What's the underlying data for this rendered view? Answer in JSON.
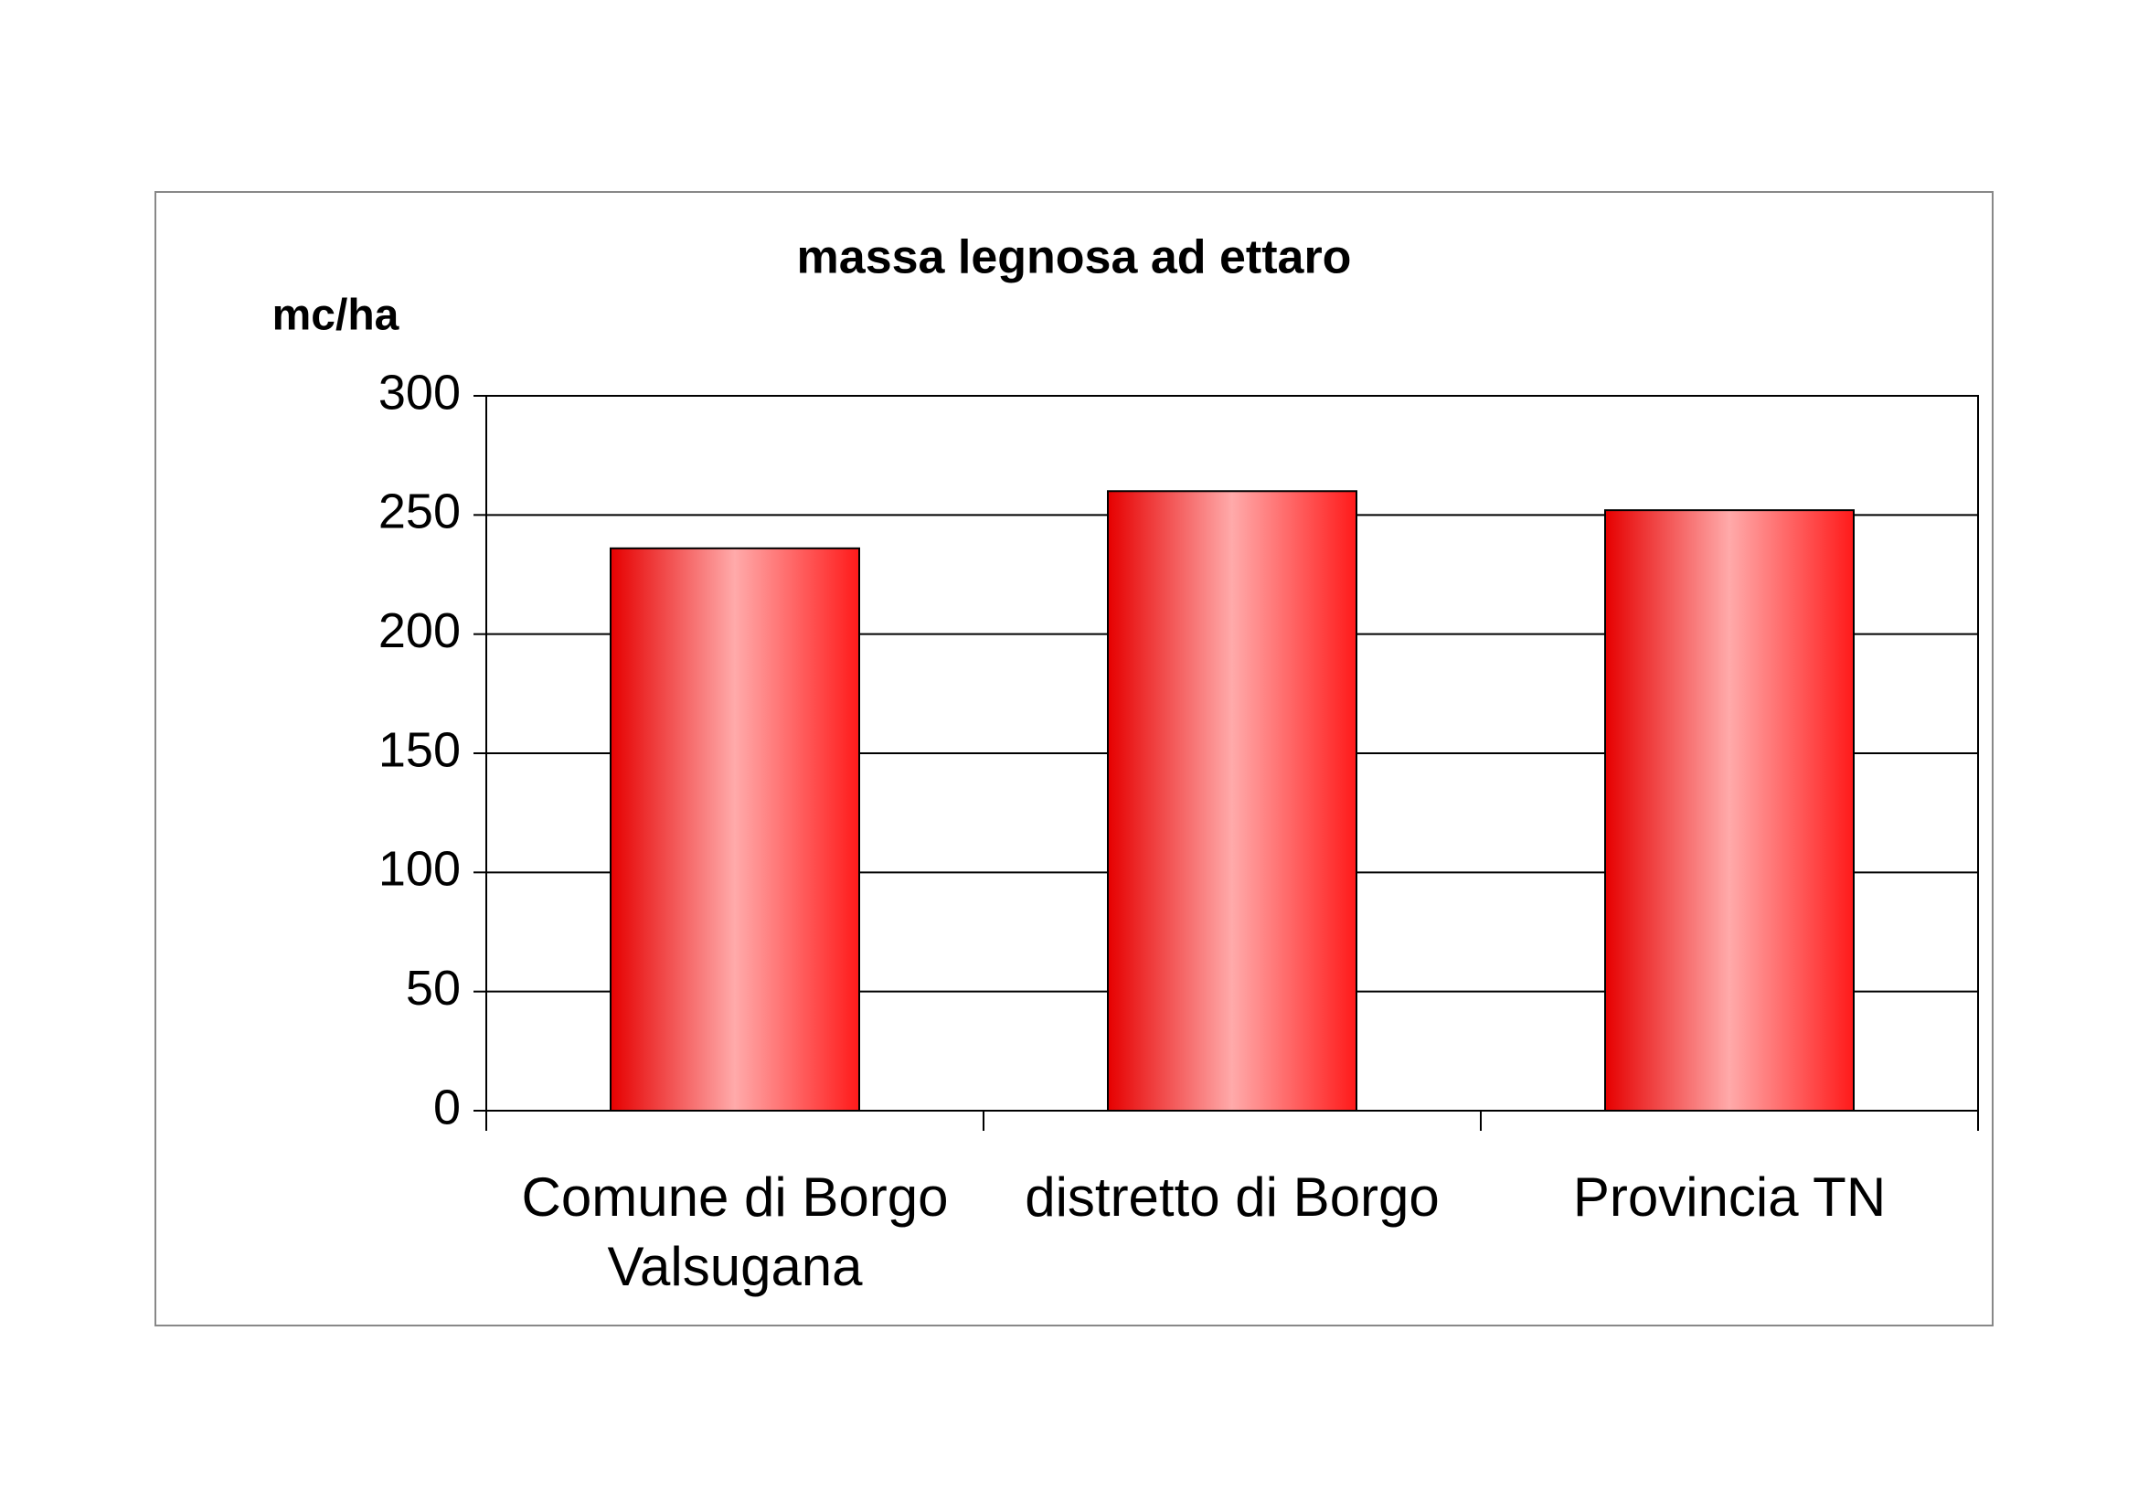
{
  "chart_data": {
    "type": "bar",
    "title": "massa legnosa ad ettaro",
    "y_label": "mc/ha",
    "categories": [
      "Comune di Borgo Valsugana",
      "distretto di Borgo",
      "Provincia TN"
    ],
    "values": [
      236,
      260,
      252
    ],
    "color": "#ff1a1a",
    "ylim": [
      0,
      300
    ],
    "yticks": [
      0,
      50,
      100,
      150,
      200,
      250,
      300
    ],
    "grid": true
  }
}
